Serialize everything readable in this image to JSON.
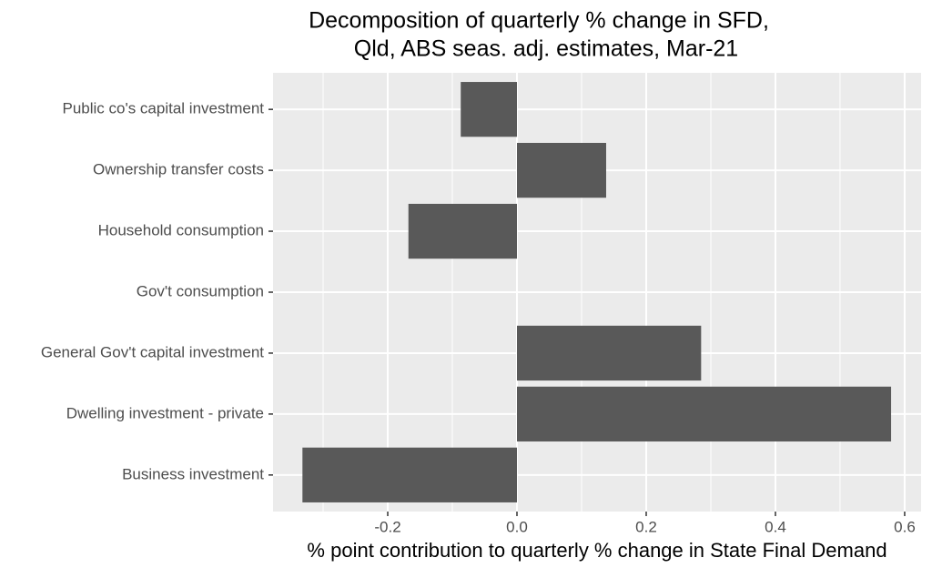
{
  "chart_data": {
    "type": "hbar",
    "title": [
      "Decomposition of quarterly % change in SFD,",
      "Qld, ABS seas. adj. estimates, Mar-21"
    ],
    "x_label": "% point contribution to quarterly % change in State Final Demand",
    "categories": [
      "Public co's capital investment",
      "Ownership transfer costs",
      "Household consumption",
      "Gov't consumption",
      "General Gov't capital investment",
      "Dwelling investment - private",
      "Business investment"
    ],
    "values": [
      -0.087,
      0.138,
      -0.168,
      0,
      0.285,
      0.579,
      -0.332
    ],
    "color": "#595959",
    "xlim": [
      -0.3775,
      0.6254
    ],
    "xticks": [
      -0.2,
      {
        "value": 0,
        "label": "0.0"
      },
      0.2,
      0.4,
      0.6
    ],
    "xminor": [
      -0.3,
      -0.1,
      0.1,
      0.3,
      0.5
    ],
    "grid": true
  }
}
